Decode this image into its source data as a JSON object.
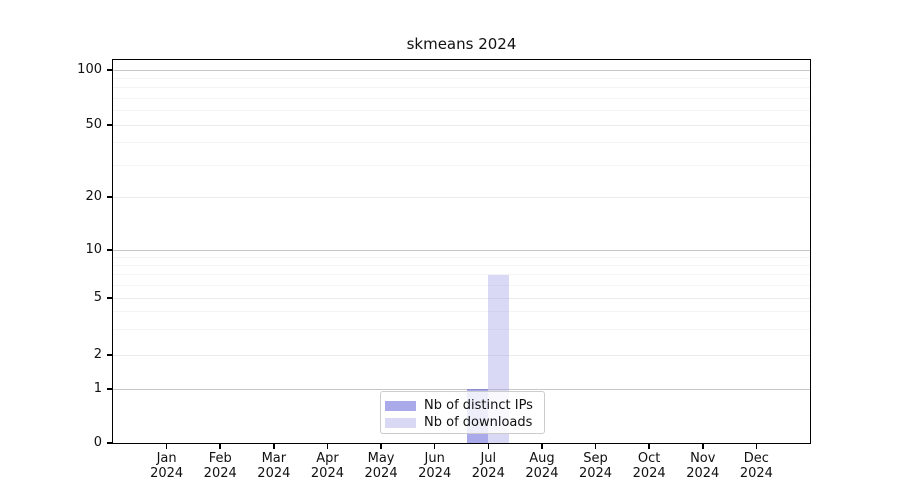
{
  "chart_data": {
    "type": "bar",
    "title": "skmeans 2024",
    "categories": [
      "Jan",
      "Feb",
      "Mar",
      "Apr",
      "May",
      "Jun",
      "Jul",
      "Aug",
      "Sep",
      "Oct",
      "Nov",
      "Dec"
    ],
    "x_year_label": "2024",
    "series": [
      {
        "name": "Nb of distinct IPs",
        "color": "rgba(85,85,215,0.5)",
        "values": [
          0,
          0,
          0,
          0,
          0,
          0,
          1,
          0,
          0,
          0,
          0,
          0
        ]
      },
      {
        "name": "Nb of downloads",
        "color": "rgba(160,160,230,0.4)",
        "values": [
          0,
          0,
          0,
          0,
          0,
          0,
          7,
          0,
          0,
          0,
          0,
          0
        ]
      }
    ],
    "y_ticks": [
      0,
      1,
      2,
      5,
      10,
      20,
      50,
      100
    ],
    "y_minor_gridlines": [
      3,
      4,
      6,
      7,
      8,
      9,
      30,
      40,
      60,
      70,
      80,
      90
    ],
    "ylim": [
      0,
      100
    ],
    "scale": "log-like",
    "grid": true,
    "legend_position": "bottom-center",
    "colors": {
      "gridline_decade": "#c7c7c7",
      "gridline_major": "#ebebeb",
      "gridline_minor": "#f4f4f4",
      "axis": "#000000"
    }
  }
}
